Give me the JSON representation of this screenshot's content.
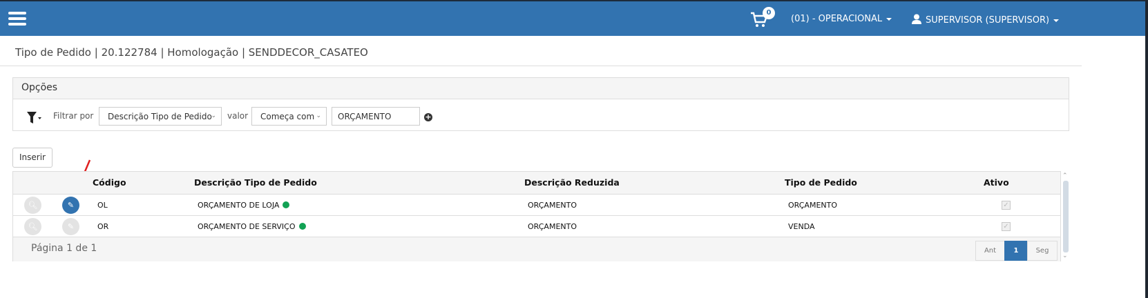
{
  "header": {
    "cart_count": "0",
    "unit": "(01) - OPERACIONAL",
    "user": "SUPERVISOR (SUPERVISOR)",
    "color": "#3273b0"
  },
  "page_title": "Tipo de Pedido | 20.122784 | Homologação | SENDDECOR_CASATEO",
  "options": {
    "title": "Opções",
    "filter_by_label": "Filtrar por",
    "filter_field": "Descrição Tipo de Pedido",
    "value_label": "valor",
    "operator": "Começa com",
    "value": "ORÇAMENTO"
  },
  "insert_label": "Inserir",
  "table": {
    "columns": [
      "Código",
      "Descrição Tipo de Pedido",
      "Descrição Reduzida",
      "Tipo de Pedido",
      "Ativo"
    ],
    "rows": [
      {
        "code": "OL",
        "description": "ORÇAMENTO DE LOJA",
        "short": "ORÇAMENTO",
        "type": "ORÇAMENTO",
        "active": true,
        "status": "green"
      },
      {
        "code": "OR",
        "description": "ORÇAMENTO DE SERVIÇO",
        "short": "ORÇAMENTO",
        "type": "VENDA",
        "active": true,
        "status": "green"
      }
    ],
    "page_info": "Página 1 de 1",
    "pager": {
      "prev": "Ant",
      "current": "1",
      "next": "Seg"
    }
  }
}
